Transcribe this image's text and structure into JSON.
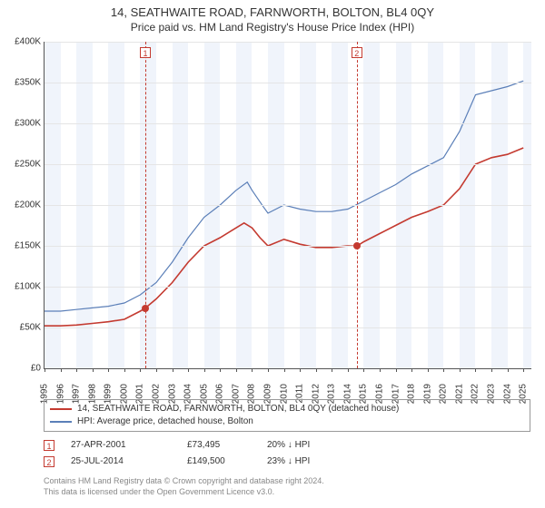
{
  "title": "14, SEATHWAITE ROAD, FARNWORTH, BOLTON, BL4 0QY",
  "subtitle": "Price paid vs. HM Land Registry's House Price Index (HPI)",
  "chart": {
    "type": "line",
    "background_color": "#ffffff",
    "grid_color": "#e5e5e5",
    "axis_color": "#555555",
    "band_color": "#f0f4fb",
    "xmin": 1995,
    "xmax": 2025.5,
    "ymin": 0,
    "ymax": 400000,
    "ytick_step": 50000,
    "yticks": [
      "£0",
      "£50K",
      "£100K",
      "£150K",
      "£200K",
      "£250K",
      "£300K",
      "£350K",
      "£400K"
    ],
    "xticks": [
      1995,
      1996,
      1997,
      1998,
      1999,
      2000,
      2001,
      2002,
      2003,
      2004,
      2005,
      2006,
      2007,
      2008,
      2009,
      2010,
      2011,
      2012,
      2013,
      2014,
      2015,
      2016,
      2017,
      2018,
      2019,
      2020,
      2021,
      2022,
      2023,
      2024,
      2025
    ],
    "band_years_odd": true,
    "series": [
      {
        "name": "red",
        "color": "#c43a30",
        "width": 1.6,
        "label": "14, SEATHWAITE ROAD, FARNWORTH, BOLTON, BL4 0QY (detached house)",
        "points": [
          [
            1995,
            52000
          ],
          [
            1996,
            52000
          ],
          [
            1997,
            53000
          ],
          [
            1998,
            55000
          ],
          [
            1999,
            57000
          ],
          [
            2000,
            60000
          ],
          [
            2001,
            70000
          ],
          [
            2001.3,
            73495
          ],
          [
            2002,
            85000
          ],
          [
            2003,
            105000
          ],
          [
            2004,
            130000
          ],
          [
            2005,
            150000
          ],
          [
            2006,
            160000
          ],
          [
            2007,
            172000
          ],
          [
            2007.5,
            178000
          ],
          [
            2008,
            172000
          ],
          [
            2008.5,
            160000
          ],
          [
            2009,
            150000
          ],
          [
            2010,
            158000
          ],
          [
            2011,
            152000
          ],
          [
            2012,
            148000
          ],
          [
            2013,
            148000
          ],
          [
            2014,
            150000
          ],
          [
            2014.56,
            149500
          ],
          [
            2015,
            155000
          ],
          [
            2016,
            165000
          ],
          [
            2017,
            175000
          ],
          [
            2018,
            185000
          ],
          [
            2019,
            192000
          ],
          [
            2020,
            200000
          ],
          [
            2021,
            220000
          ],
          [
            2022,
            250000
          ],
          [
            2023,
            258000
          ],
          [
            2024,
            262000
          ],
          [
            2025,
            270000
          ]
        ]
      },
      {
        "name": "blue",
        "color": "#5b7fb8",
        "width": 1.2,
        "label": "HPI: Average price, detached house, Bolton",
        "points": [
          [
            1995,
            70000
          ],
          [
            1996,
            70000
          ],
          [
            1997,
            72000
          ],
          [
            1998,
            74000
          ],
          [
            1999,
            76000
          ],
          [
            2000,
            80000
          ],
          [
            2001,
            90000
          ],
          [
            2002,
            105000
          ],
          [
            2003,
            130000
          ],
          [
            2004,
            160000
          ],
          [
            2005,
            185000
          ],
          [
            2006,
            200000
          ],
          [
            2007,
            218000
          ],
          [
            2007.7,
            228000
          ],
          [
            2008,
            218000
          ],
          [
            2008.7,
            198000
          ],
          [
            2009,
            190000
          ],
          [
            2010,
            200000
          ],
          [
            2011,
            195000
          ],
          [
            2012,
            192000
          ],
          [
            2013,
            192000
          ],
          [
            2014,
            195000
          ],
          [
            2015,
            205000
          ],
          [
            2016,
            215000
          ],
          [
            2017,
            225000
          ],
          [
            2018,
            238000
          ],
          [
            2019,
            248000
          ],
          [
            2020,
            258000
          ],
          [
            2021,
            290000
          ],
          [
            2022,
            335000
          ],
          [
            2023,
            340000
          ],
          [
            2024,
            345000
          ],
          [
            2025,
            352000
          ]
        ]
      }
    ],
    "events": [
      {
        "num": "1",
        "year": 2001.32,
        "price": 73495
      },
      {
        "num": "2",
        "year": 2014.56,
        "price": 149500
      }
    ]
  },
  "legend": {
    "red": "14, SEATHWAITE ROAD, FARNWORTH, BOLTON, BL4 0QY (detached house)",
    "blue": "HPI: Average price, detached house, Bolton"
  },
  "sales": [
    {
      "num": "1",
      "date": "27-APR-2001",
      "price": "£73,495",
      "delta": "20% ↓ HPI"
    },
    {
      "num": "2",
      "date": "25-JUL-2014",
      "price": "£149,500",
      "delta": "23% ↓ HPI"
    }
  ],
  "footer": {
    "line1": "Contains HM Land Registry data © Crown copyright and database right 2024.",
    "line2": "This data is licensed under the Open Government Licence v3.0."
  },
  "colors": {
    "red": "#c43a30",
    "blue": "#5b7fb8"
  }
}
